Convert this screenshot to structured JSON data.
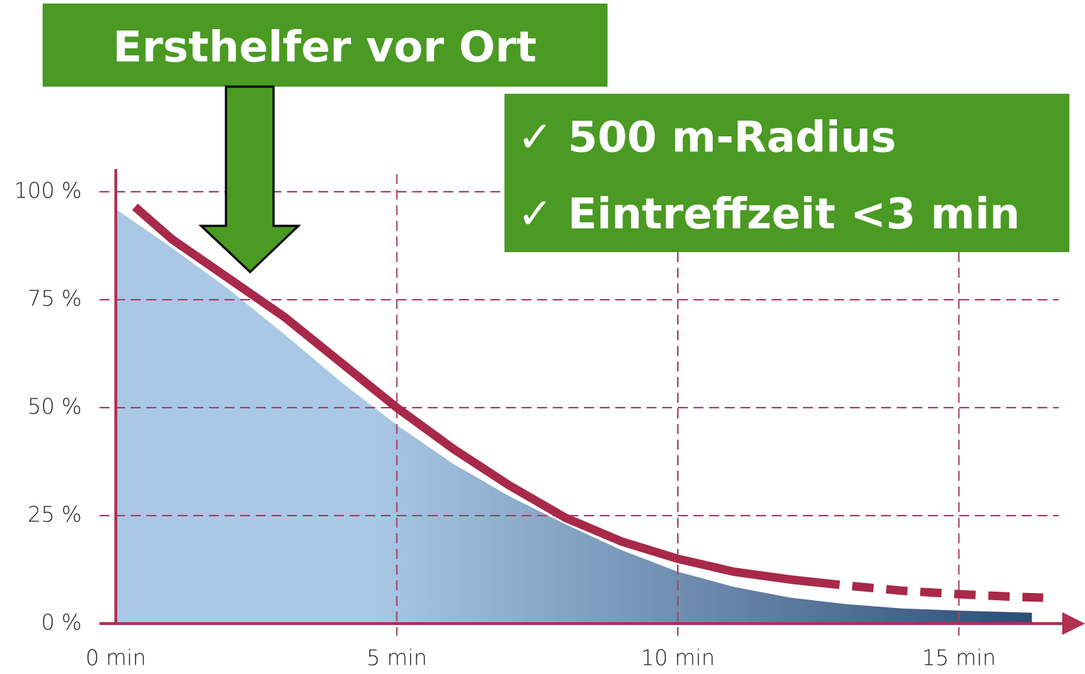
{
  "chart_data": {
    "type": "line",
    "xlim": [
      0,
      17
    ],
    "ylim": [
      0,
      100
    ],
    "xticks": [
      {
        "value": 0,
        "label": "0 min"
      },
      {
        "value": 5,
        "label": "5 min"
      },
      {
        "value": 10,
        "label": "10 min"
      },
      {
        "value": 15,
        "label": "15 min"
      }
    ],
    "yticks": [
      {
        "value": 0,
        "label": "0 %"
      },
      {
        "value": 25,
        "label": "25 %"
      },
      {
        "value": 50,
        "label": "50 %"
      },
      {
        "value": 75,
        "label": "75 %"
      },
      {
        "value": 100,
        "label": "100 %"
      }
    ],
    "grid": true,
    "grid_color": "#a8405e",
    "series": [
      {
        "kind": "area",
        "color": "#a9c8e6",
        "color_end": "#2f4b73",
        "x": [
          0,
          1,
          2,
          3,
          4,
          5,
          6,
          7,
          8,
          9,
          10,
          11,
          12,
          13,
          14,
          15,
          16.3
        ],
        "values": [
          96,
          87,
          77.5,
          67,
          56,
          46,
          37,
          29.5,
          23,
          17,
          12,
          8.5,
          6,
          4.5,
          3.5,
          3,
          2.5
        ]
      },
      {
        "kind": "line",
        "color": "#a8294a",
        "x": [
          0.34,
          1,
          2,
          3,
          4,
          5,
          6,
          7,
          8,
          9,
          10,
          11,
          12,
          12.5
        ],
        "values": [
          96.5,
          89,
          80,
          71,
          60.5,
          50,
          40.5,
          32,
          24.5,
          19,
          15,
          12,
          10.2,
          9.5
        ]
      },
      {
        "kind": "line",
        "dashed": true,
        "color": "#a8294a",
        "x": [
          12.5,
          13,
          14,
          15,
          16,
          16.5
        ],
        "values": [
          9.5,
          8.8,
          7.6,
          6.8,
          6.2,
          6
        ]
      }
    ],
    "annotations": [
      "Ersthelfer vor Ort",
      "✓ 500 m-Radius",
      "✓ Eintreffzeit <3 min"
    ]
  }
}
